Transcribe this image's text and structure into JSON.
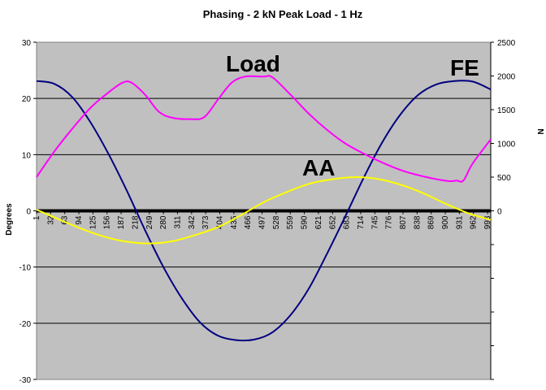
{
  "chart_data": {
    "type": "line",
    "title": "Phasing - 2 kN Peak Load - 1 Hz",
    "ylabel": "Degrees",
    "y2label": "N",
    "ylim": [
      -30,
      30
    ],
    "y2lim": [
      0,
      2500
    ],
    "y_ticks": [
      "30",
      "20",
      "10",
      "0",
      "-10",
      "-20",
      "-30"
    ],
    "y2_ticks": [
      "2500",
      "2000",
      "1500",
      "1000",
      "500",
      "0"
    ],
    "x_tick_labels": [
      "1",
      "32",
      "63",
      "94",
      "125",
      "156",
      "187",
      "218",
      "249",
      "280",
      "311",
      "342",
      "373",
      "404",
      "435",
      "466",
      "497",
      "528",
      "559",
      "590",
      "621",
      "652",
      "683",
      "714",
      "745",
      "776",
      "807",
      "838",
      "869",
      "900",
      "931",
      "962",
      "993"
    ],
    "xlim": [
      1,
      1000
    ],
    "plot_background": "#c0c0c0",
    "gridlines": true,
    "annotations": [
      "Load",
      "FE",
      "AA"
    ],
    "series": [
      {
        "name": "FE",
        "axis": "left",
        "color": "#000080",
        "x": [
          1,
          40,
          80,
          120,
          160,
          200,
          240,
          280,
          320,
          360,
          400,
          440,
          480,
          520,
          560,
          600,
          640,
          680,
          720,
          760,
          800,
          840,
          880,
          920,
          960,
          1000
        ],
        "y": [
          23.1,
          22.6,
          20.2,
          15.7,
          10.0,
          3.5,
          -3.5,
          -10.0,
          -15.5,
          -19.8,
          -22.2,
          -23.0,
          -22.9,
          -21.6,
          -18.5,
          -13.8,
          -7.6,
          -1.0,
          5.8,
          12.0,
          17.0,
          20.6,
          22.5,
          23.1,
          23.0,
          21.6
        ]
      },
      {
        "name": "Load",
        "axis": "right",
        "color": "#ff00ff",
        "x": [
          1,
          40,
          80,
          120,
          160,
          190,
          210,
          240,
          270,
          300,
          340,
          370,
          400,
          430,
          460,
          500,
          520,
          560,
          600,
          640,
          680,
          720,
          760,
          800,
          840,
          880,
          910,
          925,
          940,
          960,
          1000
        ],
        "y": [
          500,
          880,
          1220,
          1530,
          1760,
          1900,
          1900,
          1720,
          1470,
          1380,
          1360,
          1390,
          1650,
          1900,
          1990,
          1990,
          1980,
          1720,
          1440,
          1200,
          1000,
          850,
          720,
          610,
          530,
          470,
          440,
          450,
          450,
          700,
          1060
        ]
      },
      {
        "name": "AA",
        "axis": "left",
        "color": "#ffff00",
        "x": [
          1,
          50,
          100,
          150,
          200,
          250,
          300,
          350,
          400,
          450,
          500,
          550,
          600,
          650,
          700,
          750,
          800,
          850,
          900,
          950,
          1000
        ],
        "y": [
          0.2,
          -1.5,
          -3.2,
          -4.6,
          -5.5,
          -5.8,
          -5.4,
          -4.3,
          -2.9,
          -0.8,
          1.5,
          3.3,
          4.8,
          5.6,
          6.0,
          5.7,
          4.7,
          3.2,
          1.3,
          -0.4,
          -1.6
        ]
      }
    ]
  }
}
